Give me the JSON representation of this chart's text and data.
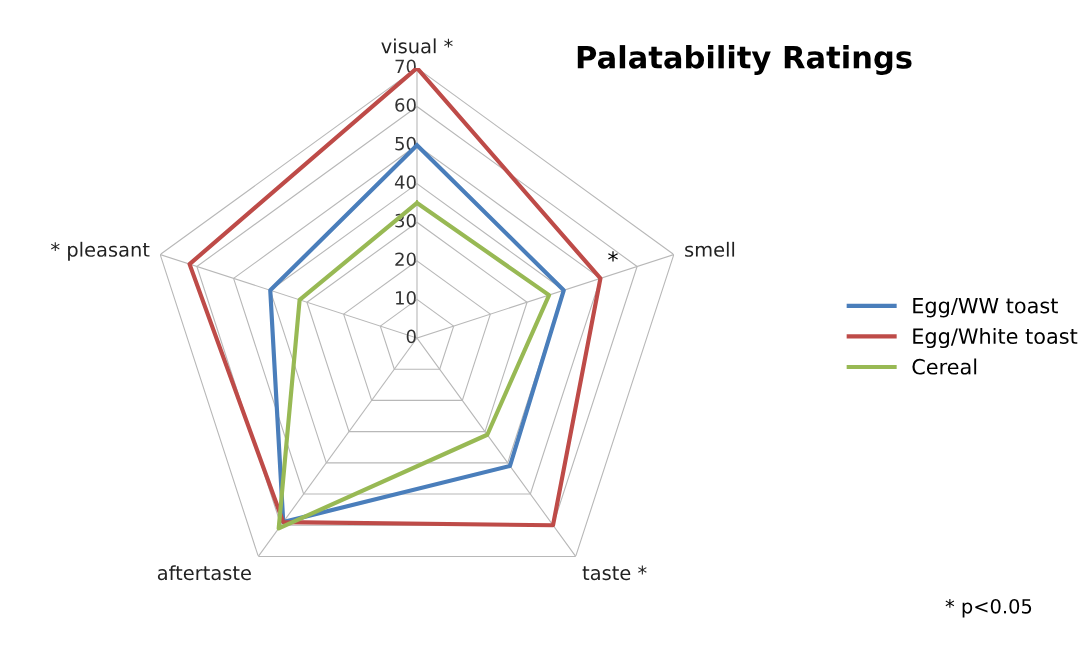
{
  "chart_data": {
    "type": "radar",
    "title": "Palatability Ratings",
    "categories": [
      "visual *",
      "smell",
      "taste *",
      "aftertaste",
      "* pleasant"
    ],
    "series": [
      {
        "name": "Egg/WW toast",
        "color": "#4a7ebb",
        "values": [
          50,
          40,
          41,
          59,
          40
        ]
      },
      {
        "name": "Egg/White toast",
        "color": "#be4b48",
        "values": [
          70,
          50,
          60,
          59,
          62
        ]
      },
      {
        "name": "Cereal",
        "color": "#98b954",
        "values": [
          35,
          36,
          31,
          61,
          32
        ]
      }
    ],
    "ylim": [
      0,
      70
    ],
    "yticks": [
      0,
      10,
      20,
      30,
      40,
      50,
      60,
      70
    ],
    "grid": true,
    "legend": "right",
    "marker": "none",
    "line_style": "solid",
    "annotations": [
      {
        "text": "*",
        "x": "smell"
      },
      "* p<0.05"
    ]
  }
}
